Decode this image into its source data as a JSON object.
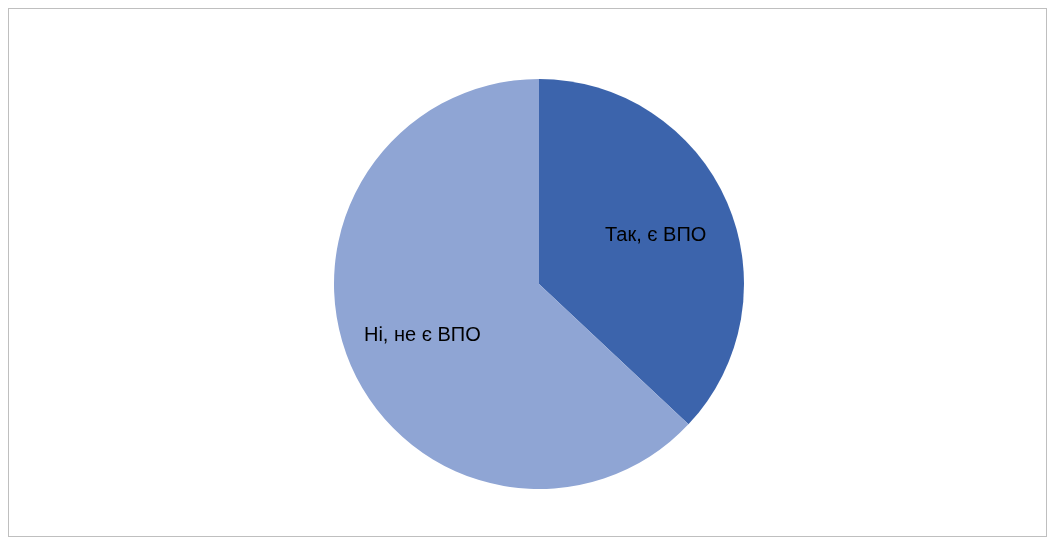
{
  "chart_data": {
    "type": "pie",
    "categories": [
      "Так, є ВПО",
      "Ні, не є ВПО"
    ],
    "values": [
      37,
      63
    ],
    "colors": [
      "#3c64ac",
      "#8fa5d4"
    ],
    "legend": false
  }
}
